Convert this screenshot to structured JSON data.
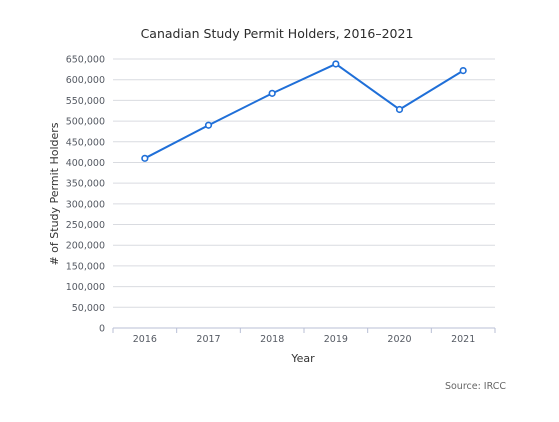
{
  "chart_data": {
    "type": "line",
    "title": "Canadian Study Permit Holders, 2016–2021",
    "xlabel": "Year",
    "ylabel": "# of Study Permit Holders",
    "categories": [
      "2016",
      "2017",
      "2018",
      "2019",
      "2020",
      "2021"
    ],
    "yticks": [
      "0",
      "50,000",
      "100,000",
      "150,000",
      "200,000",
      "250,000",
      "300,000",
      "350,000",
      "400,000",
      "450,000",
      "500,000",
      "550,000",
      "600,000",
      "650,000"
    ],
    "ylim": [
      0,
      650000
    ],
    "grid": true,
    "legend": "none",
    "series": [
      {
        "values": [
          410000,
          490000,
          567000,
          638000,
          528000,
          622000
        ]
      }
    ],
    "source": "Source: IRCC"
  },
  "colors": {
    "line": "#1f6fd8",
    "grid": "#d9dbe0",
    "axis": "#b9bfd6"
  }
}
